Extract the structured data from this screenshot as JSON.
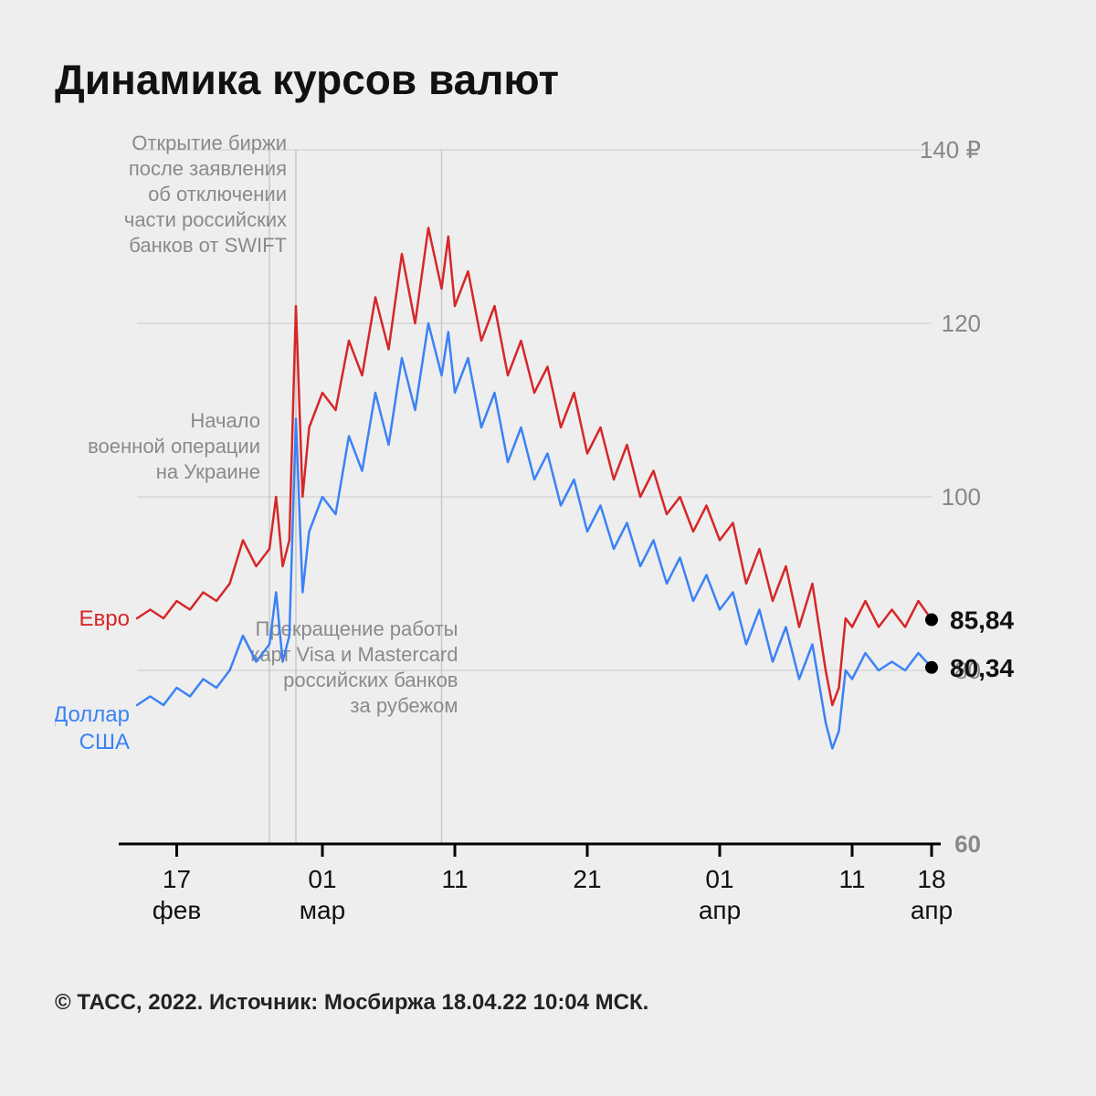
{
  "title": "Динамика курсов валют",
  "footer": "© ТАСС, 2022. Источник: Мосбиржа 18.04.22 10:04 МСК.",
  "chart": {
    "type": "line",
    "background_color": "#eeeeee",
    "grid_color": "#c9c9c9",
    "axis_color": "#000000",
    "text_color_muted": "#8a8a8a",
    "y": {
      "min": 60,
      "max": 140,
      "ticks": [
        60,
        80,
        100,
        120,
        140
      ],
      "unit": "₽",
      "label_color": "#888888",
      "fontsize": 26
    },
    "x": {
      "min": 0,
      "max": 60,
      "ticks": [
        {
          "pos": 3,
          "top": "17",
          "bot": "фев"
        },
        {
          "pos": 14,
          "top": "01",
          "bot": "мар"
        },
        {
          "pos": 24,
          "top": "11",
          "bot": ""
        },
        {
          "pos": 34,
          "top": "21",
          "bot": ""
        },
        {
          "pos": 44,
          "top": "01",
          "bot": "апр"
        },
        {
          "pos": 54,
          "top": "11",
          "bot": ""
        },
        {
          "pos": 60,
          "top": "18",
          "bot": "апр"
        }
      ],
      "label_color": "#111111",
      "fontsize": 28
    },
    "annotations": [
      {
        "x": 10,
        "lines": [
          "Начало",
          "военной операции",
          "на Украине"
        ],
        "label_top_y": 108
      },
      {
        "x": 12,
        "lines": [
          "Открытие биржи",
          "после заявления",
          "об отключении",
          "части российских",
          "банков от SWIFT"
        ],
        "label_top_y": 140
      },
      {
        "x": 23,
        "lines": [
          "Прекращение работы",
          "карт Visa и Mastercard",
          "российских банков",
          "за рубежом"
        ],
        "label_top_y": 84,
        "label_align": "start",
        "label_x_offset": 18
      }
    ],
    "series": [
      {
        "name": "Евро",
        "label": "Евро",
        "color": "#d62728",
        "line_width": 2.5,
        "end_value": "85,84",
        "data": [
          [
            0,
            86
          ],
          [
            1,
            87
          ],
          [
            2,
            86
          ],
          [
            3,
            88
          ],
          [
            4,
            87
          ],
          [
            5,
            89
          ],
          [
            6,
            88
          ],
          [
            7,
            90
          ],
          [
            8,
            95
          ],
          [
            9,
            92
          ],
          [
            10,
            94
          ],
          [
            10.5,
            100
          ],
          [
            11,
            92
          ],
          [
            11.5,
            95
          ],
          [
            12,
            122
          ],
          [
            12.5,
            100
          ],
          [
            13,
            108
          ],
          [
            14,
            112
          ],
          [
            15,
            110
          ],
          [
            16,
            118
          ],
          [
            17,
            114
          ],
          [
            18,
            123
          ],
          [
            19,
            117
          ],
          [
            20,
            128
          ],
          [
            21,
            120
          ],
          [
            22,
            131
          ],
          [
            23,
            124
          ],
          [
            23.5,
            130
          ],
          [
            24,
            122
          ],
          [
            25,
            126
          ],
          [
            26,
            118
          ],
          [
            27,
            122
          ],
          [
            28,
            114
          ],
          [
            29,
            118
          ],
          [
            30,
            112
          ],
          [
            31,
            115
          ],
          [
            32,
            108
          ],
          [
            33,
            112
          ],
          [
            34,
            105
          ],
          [
            35,
            108
          ],
          [
            36,
            102
          ],
          [
            37,
            106
          ],
          [
            38,
            100
          ],
          [
            39,
            103
          ],
          [
            40,
            98
          ],
          [
            41,
            100
          ],
          [
            42,
            96
          ],
          [
            43,
            99
          ],
          [
            44,
            95
          ],
          [
            45,
            97
          ],
          [
            46,
            90
          ],
          [
            47,
            94
          ],
          [
            48,
            88
          ],
          [
            49,
            92
          ],
          [
            50,
            85
          ],
          [
            51,
            90
          ],
          [
            52,
            80
          ],
          [
            52.5,
            76
          ],
          [
            53,
            78
          ],
          [
            53.5,
            86
          ],
          [
            54,
            85
          ],
          [
            55,
            88
          ],
          [
            56,
            85
          ],
          [
            57,
            87
          ],
          [
            58,
            85
          ],
          [
            59,
            88
          ],
          [
            60,
            85.84
          ]
        ]
      },
      {
        "name": "Доллар США",
        "label": "Доллар\nСША",
        "color": "#3b82f6",
        "line_width": 2.5,
        "end_value": "80,34",
        "data": [
          [
            0,
            76
          ],
          [
            1,
            77
          ],
          [
            2,
            76
          ],
          [
            3,
            78
          ],
          [
            4,
            77
          ],
          [
            5,
            79
          ],
          [
            6,
            78
          ],
          [
            7,
            80
          ],
          [
            8,
            84
          ],
          [
            9,
            81
          ],
          [
            10,
            83
          ],
          [
            10.5,
            89
          ],
          [
            11,
            81
          ],
          [
            11.5,
            84
          ],
          [
            12,
            109
          ],
          [
            12.5,
            89
          ],
          [
            13,
            96
          ],
          [
            14,
            100
          ],
          [
            15,
            98
          ],
          [
            16,
            107
          ],
          [
            17,
            103
          ],
          [
            18,
            112
          ],
          [
            19,
            106
          ],
          [
            20,
            116
          ],
          [
            21,
            110
          ],
          [
            22,
            120
          ],
          [
            23,
            114
          ],
          [
            23.5,
            119
          ],
          [
            24,
            112
          ],
          [
            25,
            116
          ],
          [
            26,
            108
          ],
          [
            27,
            112
          ],
          [
            28,
            104
          ],
          [
            29,
            108
          ],
          [
            30,
            102
          ],
          [
            31,
            105
          ],
          [
            32,
            99
          ],
          [
            33,
            102
          ],
          [
            34,
            96
          ],
          [
            35,
            99
          ],
          [
            36,
            94
          ],
          [
            37,
            97
          ],
          [
            38,
            92
          ],
          [
            39,
            95
          ],
          [
            40,
            90
          ],
          [
            41,
            93
          ],
          [
            42,
            88
          ],
          [
            43,
            91
          ],
          [
            44,
            87
          ],
          [
            45,
            89
          ],
          [
            46,
            83
          ],
          [
            47,
            87
          ],
          [
            48,
            81
          ],
          [
            49,
            85
          ],
          [
            50,
            79
          ],
          [
            51,
            83
          ],
          [
            52,
            74
          ],
          [
            52.5,
            71
          ],
          [
            53,
            73
          ],
          [
            53.5,
            80
          ],
          [
            54,
            79
          ],
          [
            55,
            82
          ],
          [
            56,
            80
          ],
          [
            57,
            81
          ],
          [
            58,
            80
          ],
          [
            59,
            82
          ],
          [
            60,
            80.34
          ]
        ]
      }
    ],
    "series_label_fontsize": 24,
    "end_label_fontsize": 28,
    "end_marker_radius": 7,
    "end_marker_color": "#000000"
  }
}
